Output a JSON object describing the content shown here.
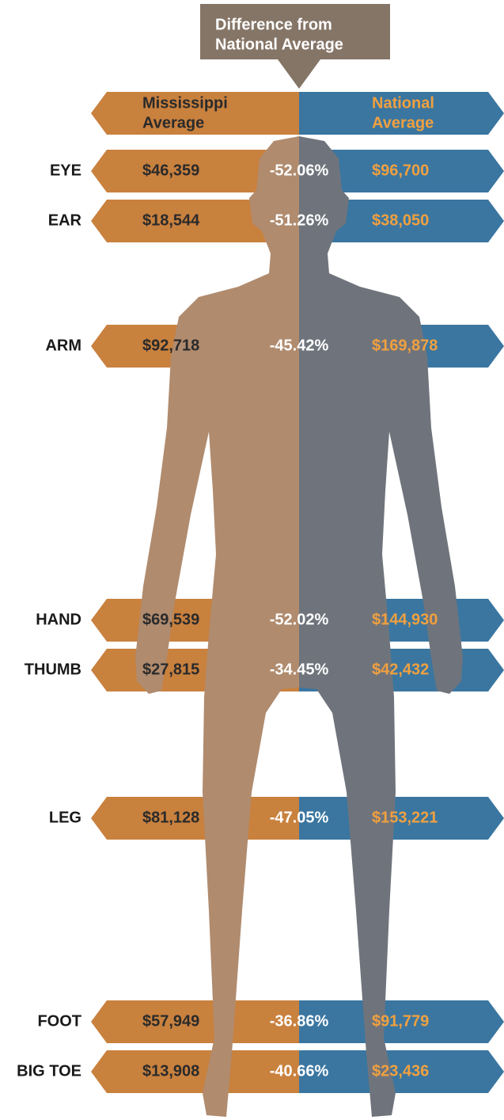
{
  "header": {
    "lines": [
      "Difference from",
      "National Average"
    ]
  },
  "columns": {
    "state": [
      "Mississippi",
      "Average"
    ],
    "national": [
      "National",
      "Average"
    ]
  },
  "rows": [
    {
      "label": "EYE",
      "state": "$46,359",
      "difference": "-52.06%",
      "national": "$96,700"
    },
    {
      "label": "EAR",
      "state": "$18,544",
      "difference": "-51.26%",
      "national": "$38,050"
    },
    {
      "label": "ARM",
      "state": "$92,718",
      "difference": "-45.42%",
      "national": "$169,878"
    },
    {
      "label": "HAND",
      "state": "$69,539",
      "difference": "-52.02%",
      "national": "$144,930"
    },
    {
      "label": "THUMB",
      "state": "$27,815",
      "difference": "-34.45%",
      "national": "$42,432"
    },
    {
      "label": "LEG",
      "state": "$81,128",
      "difference": "-47.05%",
      "national": "$153,221"
    },
    {
      "label": "FOOT",
      "state": "$57,949",
      "difference": "-36.86%",
      "national": "$91,779"
    },
    {
      "label": "BIG TOE",
      "state": "$13,908",
      "difference": "-40.66%",
      "national": "$23,436"
    }
  ]
}
